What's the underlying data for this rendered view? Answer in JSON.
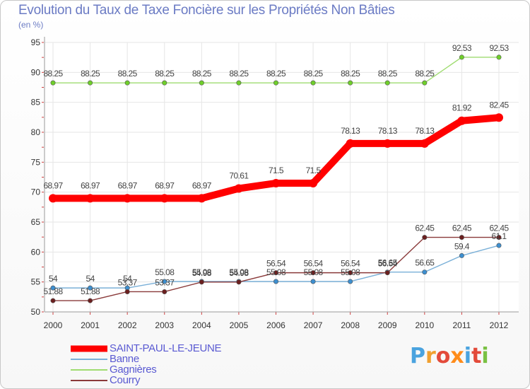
{
  "title": "Evolution du Taux de Taxe Foncière sur les Propriétés Non Bâties",
  "subtitle": "(en %)",
  "logo": {
    "text": "Proxiti",
    "letters": [
      {
        "char": "P",
        "color": "#4aa3df"
      },
      {
        "char": "r",
        "color": "#f0a030"
      },
      {
        "char": "o",
        "color": "#e34a3a"
      },
      {
        "char": "x",
        "color": "#ff8c1a"
      },
      {
        "char": "i",
        "color": "#4aa3df"
      },
      {
        "char": "t",
        "color": "#e34a3a"
      },
      {
        "char": "i",
        "color": "#7ac143"
      }
    ]
  },
  "chart_data": {
    "type": "line",
    "title": "Evolution du Taux de Taxe Foncière sur les Propriétés Non Bâties",
    "ylabel": "(en %)",
    "xlabel": "",
    "ylim": [
      50,
      95
    ],
    "yticks": [
      "50",
      "55",
      "60",
      "65",
      "70",
      "75",
      "80",
      "85",
      "90",
      "95"
    ],
    "grid": true,
    "legend_position": "bottom-left",
    "categories": [
      "2000",
      "2001",
      "2002",
      "2003",
      "2004",
      "2005",
      "2006",
      "2007",
      "2008",
      "2009",
      "2010",
      "2011",
      "2012"
    ],
    "series": [
      {
        "name": "SAINT-PAUL-LE-JEUNE",
        "color": "#ff0000",
        "marker_color": "#ff0000",
        "emphasis": true,
        "values": [
          68.97,
          68.97,
          68.97,
          68.97,
          68.97,
          70.61,
          71.5,
          71.5,
          78.13,
          78.13,
          78.13,
          81.92,
          82.45
        ],
        "labels": [
          "68.97",
          "68.97",
          "68.97",
          "68.97",
          "68.97",
          "70.61",
          "71.5",
          "71.5",
          "78.13",
          "78.13",
          "78.13",
          "81.92",
          "82.45"
        ]
      },
      {
        "name": "Banne",
        "color": "#7ab0d8",
        "marker_color": "#3d8fd0",
        "emphasis": false,
        "values": [
          54,
          54,
          54,
          55.08,
          55.08,
          55.08,
          55.08,
          55.08,
          55.08,
          56.65,
          56.65,
          59.4,
          61.1
        ],
        "labels": [
          "54",
          "54",
          "54",
          "55.08",
          "55.08",
          "55.08",
          "55.08",
          "55.08",
          "55.08",
          "56.65",
          "56.65",
          "59.4",
          "61.1"
        ]
      },
      {
        "name": "Gagnières",
        "color": "#9fdc70",
        "marker_color": "#6fcf2a",
        "emphasis": false,
        "values": [
          88.25,
          88.25,
          88.25,
          88.25,
          88.25,
          88.25,
          88.25,
          88.25,
          88.25,
          88.25,
          88.25,
          92.53,
          92.53
        ],
        "labels": [
          "88.25",
          "88.25",
          "88.25",
          "88.25",
          "88.25",
          "88.25",
          "88.25",
          "88.25",
          "88.25",
          "88.25",
          "88.25",
          "92.53",
          "92.53"
        ]
      },
      {
        "name": "Courry",
        "color": "#8a3a3a",
        "marker_color": "#6b1f1f",
        "emphasis": false,
        "values": [
          51.88,
          51.88,
          53.37,
          53.37,
          54.98,
          54.98,
          56.54,
          56.54,
          56.54,
          56.54,
          62.45,
          62.45,
          62.45
        ],
        "labels": [
          "51.88",
          "51.88",
          "53.37",
          "53.37",
          "54.98",
          "54.98",
          "56.54",
          "56.54",
          "56.54",
          "56.54",
          "62.45",
          "62.45",
          "62.45"
        ]
      }
    ]
  }
}
